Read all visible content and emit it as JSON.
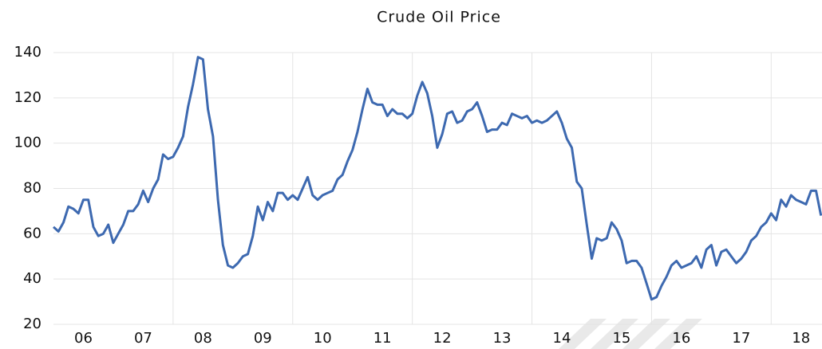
{
  "chart_data": {
    "type": "line",
    "title": "Crude Oil Price",
    "x": [
      2006,
      2006.083,
      2006.167,
      2006.25,
      2006.333,
      2006.417,
      2006.5,
      2006.583,
      2006.667,
      2006.75,
      2006.833,
      2006.917,
      2007,
      2007.083,
      2007.167,
      2007.25,
      2007.333,
      2007.417,
      2007.5,
      2007.583,
      2007.667,
      2007.75,
      2007.833,
      2007.917,
      2008,
      2008.083,
      2008.167,
      2008.25,
      2008.333,
      2008.417,
      2008.5,
      2008.583,
      2008.667,
      2008.75,
      2008.833,
      2008.917,
      2009,
      2009.083,
      2009.167,
      2009.25,
      2009.333,
      2009.417,
      2009.5,
      2009.583,
      2009.667,
      2009.75,
      2009.833,
      2009.917,
      2010,
      2010.083,
      2010.167,
      2010.25,
      2010.333,
      2010.417,
      2010.5,
      2010.583,
      2010.667,
      2010.75,
      2010.833,
      2010.917,
      2011,
      2011.083,
      2011.167,
      2011.25,
      2011.333,
      2011.417,
      2011.5,
      2011.583,
      2011.667,
      2011.75,
      2011.833,
      2011.917,
      2012,
      2012.083,
      2012.167,
      2012.25,
      2012.333,
      2012.417,
      2012.5,
      2012.583,
      2012.667,
      2012.75,
      2012.833,
      2012.917,
      2013,
      2013.083,
      2013.167,
      2013.25,
      2013.333,
      2013.417,
      2013.5,
      2013.583,
      2013.667,
      2013.75,
      2013.833,
      2013.917,
      2014,
      2014.083,
      2014.167,
      2014.25,
      2014.333,
      2014.417,
      2014.5,
      2014.583,
      2014.667,
      2014.75,
      2014.833,
      2014.917,
      2015,
      2015.083,
      2015.167,
      2015.25,
      2015.333,
      2015.417,
      2015.5,
      2015.583,
      2015.667,
      2015.75,
      2015.833,
      2015.917,
      2016,
      2016.083,
      2016.167,
      2016.25,
      2016.333,
      2016.417,
      2016.5,
      2016.583,
      2016.667,
      2016.75,
      2016.833,
      2016.917,
      2017,
      2017.083,
      2017.167,
      2017.25,
      2017.333,
      2017.417,
      2017.5,
      2017.583,
      2017.667,
      2017.75,
      2017.833,
      2017.917,
      2018,
      2018.083,
      2018.167,
      2018.25,
      2018.333,
      2018.417,
      2018.5,
      2018.583,
      2018.667,
      2018.75,
      2018.833
    ],
    "series": [
      {
        "name": "Crude Oil Price",
        "color": "#3d69b0",
        "values": [
          63,
          61,
          65,
          72,
          71,
          69,
          75,
          75,
          63,
          59,
          60,
          64,
          56,
          60,
          64,
          70,
          70,
          73,
          79,
          74,
          80,
          84,
          95,
          93,
          94,
          98,
          103,
          116,
          126,
          138,
          137,
          115,
          103,
          75,
          55,
          46,
          45,
          47,
          50,
          51,
          59,
          72,
          66,
          74,
          70,
          78,
          78,
          75,
          77,
          75,
          80,
          85,
          77,
          75,
          77,
          78,
          79,
          84,
          86,
          92,
          97,
          105,
          115,
          124,
          118,
          117,
          117,
          112,
          115,
          113,
          113,
          111,
          113,
          121,
          127,
          122,
          112,
          98,
          104,
          113,
          114,
          109,
          110,
          114,
          115,
          118,
          112,
          105,
          106,
          106,
          109,
          108,
          113,
          112,
          111,
          112,
          109,
          110,
          109,
          110,
          112,
          114,
          109,
          102,
          98,
          83,
          80,
          64,
          49,
          58,
          57,
          58,
          65,
          62,
          57,
          47,
          48,
          48,
          45,
          38,
          31,
          32,
          37,
          41,
          46,
          48,
          45,
          46,
          47,
          50,
          45,
          53,
          55,
          46,
          52,
          53,
          50,
          47,
          49,
          52,
          57,
          59,
          63,
          65,
          69,
          66,
          75,
          72,
          77,
          75,
          74,
          73,
          79,
          79,
          68
        ]
      }
    ],
    "xlim": [
      2006,
      2018.85
    ],
    "xticks": [
      {
        "value": 2006.5,
        "label": "06"
      },
      {
        "value": 2007.5,
        "label": "07"
      },
      {
        "value": 2008.5,
        "label": "08"
      },
      {
        "value": 2009.5,
        "label": "09"
      },
      {
        "value": 2010.5,
        "label": "10"
      },
      {
        "value": 2011.5,
        "label": "11"
      },
      {
        "value": 2012.5,
        "label": "12"
      },
      {
        "value": 2013.5,
        "label": "13"
      },
      {
        "value": 2014.5,
        "label": "14"
      },
      {
        "value": 2015.5,
        "label": "15"
      },
      {
        "value": 2016.5,
        "label": "16"
      },
      {
        "value": 2017.5,
        "label": "17"
      },
      {
        "value": 2018.5,
        "label": "18"
      }
    ],
    "xgrid": [
      2008,
      2010,
      2012,
      2014,
      2016,
      2018
    ],
    "ylim": [
      20,
      140
    ],
    "yticks": [
      20,
      40,
      60,
      80,
      100,
      120,
      140
    ],
    "grid": true
  }
}
